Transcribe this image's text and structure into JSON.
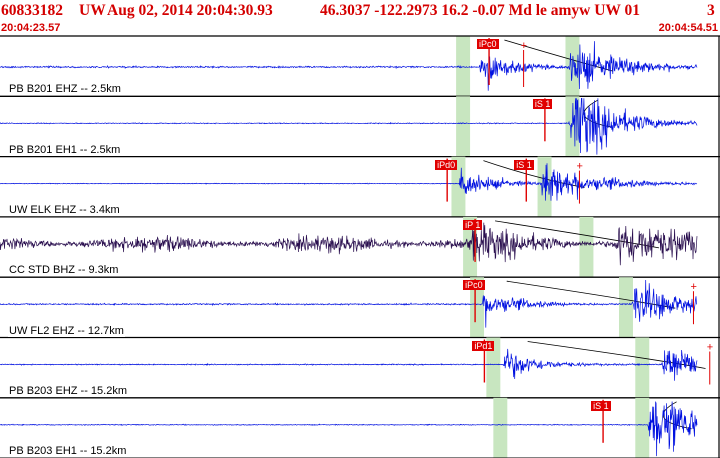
{
  "header": {
    "event_id": "60833182",
    "network": "UW",
    "datetime": "Aug 02, 2014 20:04:30.93",
    "location_mag": "46.3037 -122.2973 16.2 -0.07 Md le amyw UW 01",
    "count": "3",
    "start_time": "20:04:23.57",
    "end_time": "20:04:54.51"
  },
  "colors": {
    "title": "#d40000",
    "trace_blue": "#0010e0",
    "trace_dark": "#2a0f4f",
    "window_green": "#c8e6c0",
    "pick_red": "#e00000",
    "coda_curve": "#000000",
    "divider": "#000000"
  },
  "panels": [
    {
      "label": "PB B201 EHZ -- 2.5km",
      "color": "blue",
      "picks": [
        {
          "label": "iPc0",
          "time": 20.5
        },
        {
          "label": "",
          "time": 22.5,
          "plus": true
        }
      ],
      "green_windows": [
        [
          19.6,
          20.2
        ],
        [
          24.3,
          24.9
        ]
      ],
      "onset": 20.6,
      "s_time": 24.6,
      "amp": 1.0,
      "noise": 0.18
    },
    {
      "label": "PB B201 EH1 -- 2.5km",
      "color": "blue",
      "picks": [
        {
          "label": "iS 1",
          "time": 22.9
        }
      ],
      "green_windows": [
        [
          19.6,
          20.2
        ],
        [
          24.3,
          24.9
        ]
      ],
      "onset": 24.6,
      "s_time": 24.6,
      "amp": 1.0,
      "noise": 0.1
    },
    {
      "label": "UW ELK EHZ -- 3.4km",
      "color": "blue",
      "picks": [
        {
          "label": "iPd0",
          "time": 18.7
        },
        {
          "label": "iS 1",
          "time": 22.1
        },
        {
          "label": "",
          "time": 24.9,
          "plus": true
        }
      ],
      "green_windows": [
        [
          19.4,
          20.0
        ],
        [
          23.1,
          23.7
        ]
      ],
      "onset": 19.7,
      "s_time": 23.4,
      "amp": 0.9,
      "noise": 0.08
    },
    {
      "label": "CC STD BHZ -- 9.3km",
      "color": "dark",
      "picks": [
        {
          "label": "iP 1",
          "time": 19.9
        },
        {
          "label": "",
          "time": 34.5,
          "plus": true
        }
      ],
      "green_windows": [
        [
          19.9,
          20.5
        ],
        [
          24.9,
          25.5
        ]
      ],
      "onset": 20.2,
      "s_time": 26.6,
      "amp": 0.85,
      "noise": 0.55
    },
    {
      "label": "UW FL2 EHZ -- 12.7km",
      "color": "blue",
      "picks": [
        {
          "label": "iPc0",
          "time": 19.9
        },
        {
          "label": "",
          "time": 29.8,
          "plus": true
        }
      ],
      "green_windows": [
        [
          20.2,
          20.8
        ],
        [
          26.6,
          27.2
        ]
      ],
      "onset": 20.7,
      "s_time": 27.3,
      "amp": 0.9,
      "noise": 0.16
    },
    {
      "label": "PB B203 EHZ -- 15.2km",
      "color": "blue",
      "picks": [
        {
          "label": "iPd1",
          "time": 20.3
        },
        {
          "label": "",
          "time": 30.5,
          "plus": true
        }
      ],
      "green_windows": [
        [
          20.9,
          21.5
        ],
        [
          27.3,
          27.9
        ]
      ],
      "onset": 21.6,
      "s_time": 28.6,
      "amp": 0.9,
      "noise": 0.12
    },
    {
      "label": "PB B203 EH1 -- 15.2km",
      "color": "blue",
      "picks": [
        {
          "label": "iS 1",
          "time": 25.4
        }
      ],
      "green_windows": [
        [
          21.2,
          21.8
        ],
        [
          27.3,
          27.9
        ]
      ],
      "onset": 28.0,
      "s_time": 28.0,
      "amp": 1.0,
      "noise": 0.1
    }
  ]
}
